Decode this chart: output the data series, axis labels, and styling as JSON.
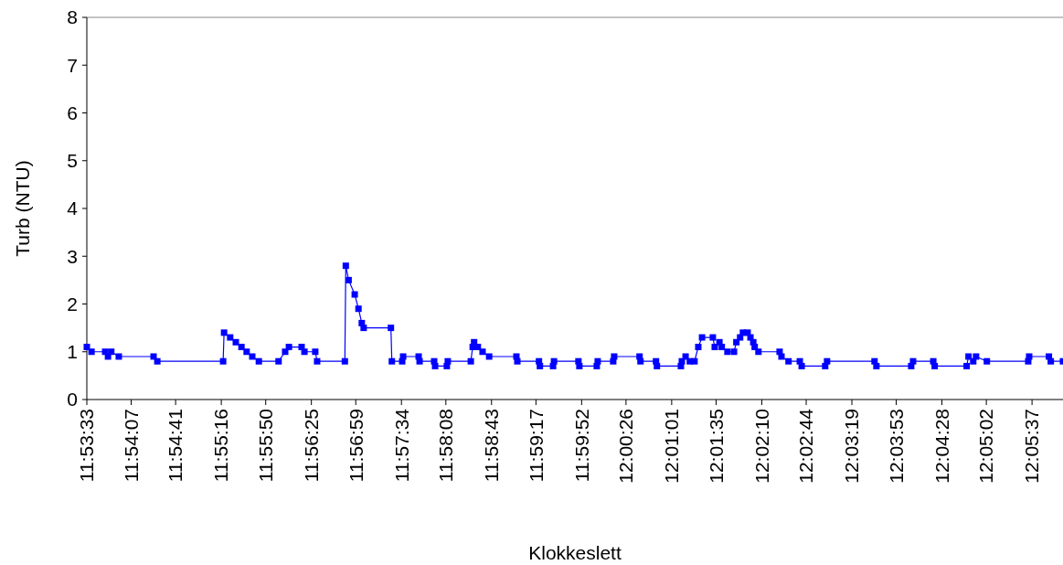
{
  "chart_data": {
    "type": "line",
    "xlabel": "Klokkeslett",
    "ylabel": "Turb (NTU)",
    "xlim": [
      11.8925,
      12.1002
    ],
    "ylim": [
      0,
      8
    ],
    "yticks": [
      0,
      1,
      2,
      3,
      4,
      5,
      6,
      7,
      8
    ],
    "xticks": [
      {
        "value": 11.8925,
        "label": "11:53:33"
      },
      {
        "value": 11.90194,
        "label": "11:54:07"
      },
      {
        "value": 11.91139,
        "label": "11:54:41"
      },
      {
        "value": 11.92111,
        "label": "11:55:16"
      },
      {
        "value": 11.93056,
        "label": "11:55:50"
      },
      {
        "value": 11.94028,
        "label": "11:56:25"
      },
      {
        "value": 11.94972,
        "label": "11:56:59"
      },
      {
        "value": 11.95944,
        "label": "11:57:34"
      },
      {
        "value": 11.96889,
        "label": "11:58:08"
      },
      {
        "value": 11.97861,
        "label": "11:58:43"
      },
      {
        "value": 11.98806,
        "label": "11:59:17"
      },
      {
        "value": 11.99778,
        "label": "11:59:52"
      },
      {
        "value": 12.00722,
        "label": "12:00:26"
      },
      {
        "value": 12.01694,
        "label": "12:01:01"
      },
      {
        "value": 12.02639,
        "label": "12:01:35"
      },
      {
        "value": 12.03611,
        "label": "12:02:10"
      },
      {
        "value": 12.04556,
        "label": "12:02:44"
      },
      {
        "value": 12.05528,
        "label": "12:03:19"
      },
      {
        "value": 12.06472,
        "label": "12:03:53"
      },
      {
        "value": 12.07444,
        "label": "12:04:28"
      },
      {
        "value": 12.08389,
        "label": "12:05:02"
      },
      {
        "value": 12.09361,
        "label": "12:05:37"
      }
    ],
    "marker": "square",
    "line_style": "solid",
    "grid": false,
    "series": [
      {
        "color": "#0000ff",
        "x": [
          11.8925,
          11.8935,
          11.8964,
          11.897,
          11.8977,
          11.8993,
          11.9067,
          11.9075,
          11.9215,
          11.9217,
          11.923,
          11.9242,
          11.9254,
          11.9265,
          11.9277,
          11.9291,
          11.9333,
          11.9347,
          11.9355,
          11.9382,
          11.9388,
          11.9411,
          11.9415,
          11.9474,
          11.9476,
          11.9482,
          11.9495,
          11.9503,
          11.951,
          11.9514,
          11.9572,
          11.9574,
          11.9596,
          11.9598,
          11.9631,
          11.9633,
          11.9664,
          11.9666,
          11.9691,
          11.9693,
          11.9742,
          11.9746,
          11.9749,
          11.9757,
          11.9767,
          11.9781,
          11.9839,
          11.9841,
          11.9887,
          11.9889,
          11.9917,
          11.9919,
          11.9971,
          11.9973,
          12.001,
          12.0012,
          12.0045,
          12.0047,
          12.0101,
          12.0103,
          12.0136,
          12.0138,
          12.0189,
          12.0191,
          12.0199,
          12.0208,
          12.0218,
          12.0226,
          12.0234,
          12.0257,
          12.0261,
          12.0271,
          12.0276,
          12.0288,
          12.0302,
          12.0307,
          12.0315,
          12.0321,
          12.0331,
          12.0337,
          12.0343,
          12.0346,
          12.0354,
          12.0399,
          12.0403,
          12.0418,
          12.0442,
          12.0446,
          12.0496,
          12.05,
          12.0601,
          12.0605,
          12.0679,
          12.0683,
          12.0726,
          12.0729,
          12.0797,
          12.0801,
          12.0811,
          12.0817,
          12.084,
          12.0928,
          12.093,
          12.0972,
          12.0976,
          12.1002
        ],
        "values": [
          1.1,
          1.0,
          1.0,
          0.9,
          1.0,
          0.9,
          0.9,
          0.8,
          0.8,
          1.4,
          1.3,
          1.2,
          1.1,
          1.0,
          0.9,
          0.8,
          0.8,
          1.0,
          1.1,
          1.1,
          1.0,
          1.0,
          0.8,
          0.8,
          2.8,
          2.5,
          2.2,
          1.9,
          1.6,
          1.5,
          1.5,
          0.8,
          0.8,
          0.9,
          0.9,
          0.8,
          0.8,
          0.7,
          0.7,
          0.8,
          0.8,
          1.1,
          1.2,
          1.1,
          1.0,
          0.9,
          0.9,
          0.8,
          0.8,
          0.7,
          0.7,
          0.8,
          0.8,
          0.7,
          0.7,
          0.8,
          0.8,
          0.9,
          0.9,
          0.8,
          0.8,
          0.7,
          0.7,
          0.8,
          0.9,
          0.8,
          0.8,
          1.1,
          1.3,
          1.3,
          1.1,
          1.2,
          1.1,
          1.0,
          1.0,
          1.2,
          1.3,
          1.4,
          1.4,
          1.3,
          1.2,
          1.1,
          1.0,
          1.0,
          0.9,
          0.8,
          0.8,
          0.7,
          0.7,
          0.8,
          0.8,
          0.7,
          0.7,
          0.8,
          0.8,
          0.7,
          0.7,
          0.9,
          0.8,
          0.9,
          0.8,
          0.8,
          0.9,
          0.9,
          0.8,
          0.8
        ]
      }
    ]
  }
}
